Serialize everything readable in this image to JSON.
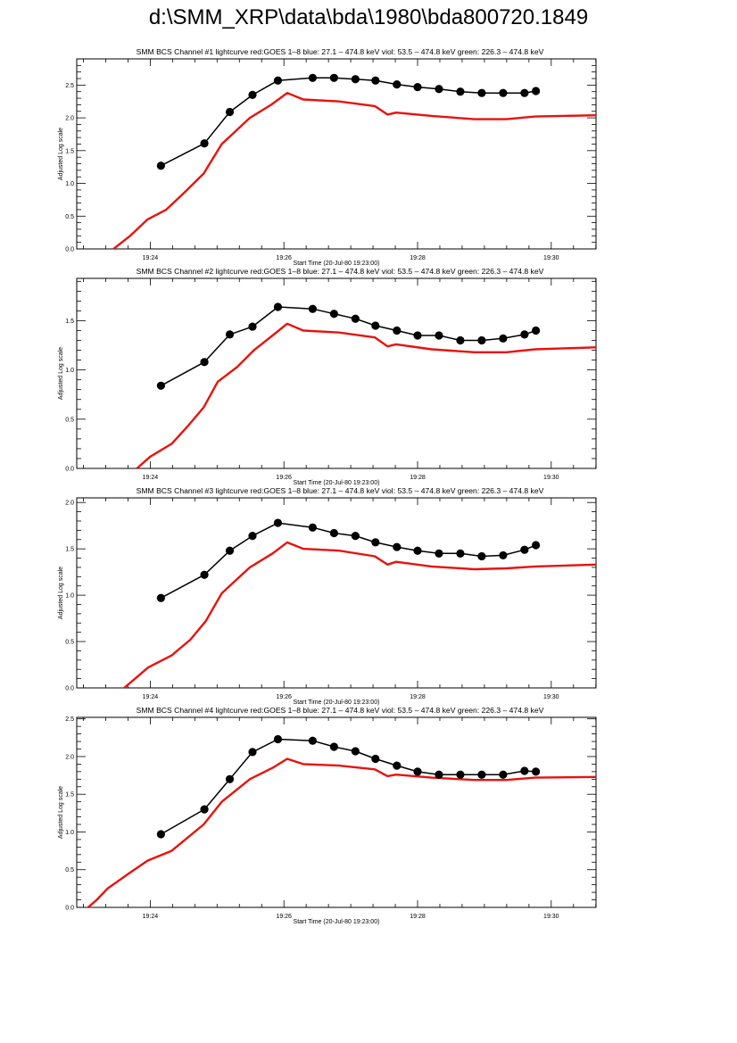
{
  "page_title": "d:\\SMM_XRP\\data\\bda\\1980\\bda800720.1849",
  "colors": {
    "goes": "#e8120c",
    "bcs": "#000000"
  },
  "chart_data": [
    {
      "type": "line",
      "title": "SMM BCS Channel #1 lightcurve  red:GOES 1–8  blue: 27.1 – 474.8 keV  viol: 53.5 – 474.8 keV  green: 226.3 – 474.8 keV",
      "xlabel": "Start Time (20-Jul-80 19:23:00)",
      "ylabel": "Adjusted Log scale",
      "xlim_minutes_after_1900": [
        22.9,
        30.67
      ],
      "xticks": [
        {
          "v": 24,
          "label": "19:24"
        },
        {
          "v": 26,
          "label": "19:26"
        },
        {
          "v": 28,
          "label": "19:28"
        },
        {
          "v": 30,
          "label": "19:30"
        }
      ],
      "ylim": [
        0,
        2.9
      ],
      "yticks": [
        {
          "v": 0,
          "label": "0.0"
        },
        {
          "v": 0.5,
          "label": "0.5"
        },
        {
          "v": 1,
          "label": "1.0"
        },
        {
          "v": 1.5,
          "label": "1.5"
        },
        {
          "v": 2,
          "label": "2.0"
        },
        {
          "v": 2.5,
          "label": "2.5"
        }
      ],
      "series": [
        {
          "name": "GOES 1-8",
          "color": "red",
          "x": [
            23.45,
            23.7,
            23.96,
            24.24,
            24.5,
            24.8,
            25.07,
            25.49,
            25.81,
            26.05,
            26.29,
            26.83,
            27.36,
            27.55,
            27.68,
            28.21,
            28.85,
            29.33,
            29.76,
            30.67
          ],
          "y": [
            0.0,
            0.2,
            0.45,
            0.6,
            0.85,
            1.15,
            1.6,
            2.0,
            2.2,
            2.38,
            2.28,
            2.25,
            2.18,
            2.05,
            2.08,
            2.03,
            1.98,
            1.98,
            2.02,
            2.04
          ]
        },
        {
          "name": "BCS",
          "color": "black",
          "markers": true,
          "x": [
            24.16,
            24.81,
            25.19,
            25.53,
            25.91,
            26.43,
            26.75,
            27.07,
            27.37,
            27.69,
            28.0,
            28.32,
            28.64,
            28.96,
            29.28,
            29.6,
            29.77
          ],
          "y": [
            1.27,
            1.61,
            2.09,
            2.35,
            2.57,
            2.61,
            2.61,
            2.59,
            2.57,
            2.51,
            2.47,
            2.44,
            2.4,
            2.38,
            2.38,
            2.38,
            2.41
          ]
        }
      ]
    },
    {
      "type": "line",
      "title": "SMM BCS Channel #2 lightcurve  red:GOES 1–8  blue: 27.1 – 474.8 keV  viol: 53.5 – 474.8 keV  green: 226.3 – 474.8 keV",
      "xlabel": "Start Time (20-Jul-80 19:23:00)",
      "ylabel": "Adjusted Log scale",
      "xlim_minutes_after_1900": [
        22.9,
        30.67
      ],
      "xticks": [
        {
          "v": 24,
          "label": "19:24"
        },
        {
          "v": 26,
          "label": "19:26"
        },
        {
          "v": 28,
          "label": "19:28"
        },
        {
          "v": 30,
          "label": "19:30"
        }
      ],
      "ylim": [
        0,
        1.93
      ],
      "yticks": [
        {
          "v": 0,
          "label": "0.0"
        },
        {
          "v": 0.5,
          "label": "0.5"
        },
        {
          "v": 1,
          "label": "1.0"
        },
        {
          "v": 1.5,
          "label": "1.5"
        }
      ],
      "series": [
        {
          "name": "GOES 1-8",
          "color": "red",
          "x": [
            23.8,
            24.0,
            24.32,
            24.55,
            24.8,
            25.01,
            25.3,
            25.55,
            25.83,
            26.05,
            26.29,
            26.83,
            27.36,
            27.55,
            27.68,
            28.21,
            28.85,
            29.33,
            29.76,
            30.67
          ],
          "y": [
            0.0,
            0.12,
            0.25,
            0.42,
            0.62,
            0.88,
            1.03,
            1.2,
            1.35,
            1.47,
            1.4,
            1.38,
            1.33,
            1.24,
            1.26,
            1.21,
            1.18,
            1.18,
            1.21,
            1.23
          ]
        },
        {
          "name": "BCS",
          "color": "black",
          "markers": true,
          "x": [
            24.16,
            24.81,
            25.19,
            25.53,
            25.91,
            26.43,
            26.75,
            27.07,
            27.37,
            27.69,
            28.0,
            28.32,
            28.64,
            28.96,
            29.28,
            29.6,
            29.77
          ],
          "y": [
            0.84,
            1.08,
            1.36,
            1.44,
            1.64,
            1.62,
            1.57,
            1.52,
            1.45,
            1.4,
            1.35,
            1.35,
            1.3,
            1.3,
            1.32,
            1.36,
            1.4
          ]
        }
      ]
    },
    {
      "type": "line",
      "title": "SMM BCS Channel #3 lightcurve  red:GOES 1–8  blue: 27.1 – 474.8 keV  viol: 53.5 – 474.8 keV  green: 226.3 – 474.8 keV",
      "xlabel": "Start Time (20-Jul-80 19:23:00)",
      "ylabel": "Adjusted Log scale",
      "xlim_minutes_after_1900": [
        22.9,
        30.67
      ],
      "xticks": [
        {
          "v": 24,
          "label": "19:24"
        },
        {
          "v": 26,
          "label": "19:26"
        },
        {
          "v": 28,
          "label": "19:28"
        },
        {
          "v": 30,
          "label": "19:30"
        }
      ],
      "ylim": [
        0,
        2.05
      ],
      "yticks": [
        {
          "v": 0,
          "label": "0.0"
        },
        {
          "v": 0.5,
          "label": "0.5"
        },
        {
          "v": 1,
          "label": "1.0"
        },
        {
          "v": 1.5,
          "label": "1.5"
        },
        {
          "v": 2,
          "label": "2.0"
        }
      ],
      "series": [
        {
          "name": "GOES 1-8",
          "color": "red",
          "x": [
            23.61,
            23.97,
            24.32,
            24.6,
            24.83,
            25.07,
            25.49,
            25.83,
            26.05,
            26.29,
            26.83,
            27.36,
            27.55,
            27.68,
            28.21,
            28.85,
            29.33,
            29.76,
            30.67
          ],
          "y": [
            0.0,
            0.22,
            0.35,
            0.52,
            0.72,
            1.02,
            1.3,
            1.45,
            1.57,
            1.5,
            1.48,
            1.42,
            1.33,
            1.36,
            1.31,
            1.28,
            1.29,
            1.31,
            1.33
          ]
        },
        {
          "name": "BCS",
          "color": "black",
          "markers": true,
          "x": [
            24.16,
            24.81,
            25.19,
            25.53,
            25.91,
            26.43,
            26.75,
            27.07,
            27.37,
            27.69,
            28.0,
            28.32,
            28.64,
            28.96,
            29.28,
            29.6,
            29.77
          ],
          "y": [
            0.97,
            1.22,
            1.48,
            1.64,
            1.78,
            1.73,
            1.67,
            1.64,
            1.57,
            1.52,
            1.48,
            1.45,
            1.45,
            1.42,
            1.43,
            1.49,
            1.54
          ]
        }
      ]
    },
    {
      "type": "line",
      "title": "SMM BCS Channel #4 lightcurve  red:GOES 1–8  blue: 27.1 – 474.8 keV  viol: 53.5 – 474.8 keV  green: 226.3 – 474.8 keV",
      "xlabel": "Start Time (20-Jul-80 19:23:00)",
      "ylabel": "Adjusted Log scale",
      "xlim_minutes_after_1900": [
        22.9,
        30.67
      ],
      "xticks": [
        {
          "v": 24,
          "label": "19:24"
        },
        {
          "v": 26,
          "label": "19:26"
        },
        {
          "v": 28,
          "label": "19:28"
        },
        {
          "v": 30,
          "label": "19:30"
        }
      ],
      "ylim": [
        0,
        2.52
      ],
      "yticks": [
        {
          "v": 0,
          "label": "0.0"
        },
        {
          "v": 0.5,
          "label": "0.5"
        },
        {
          "v": 1,
          "label": "1.0"
        },
        {
          "v": 1.5,
          "label": "1.5"
        },
        {
          "v": 2,
          "label": "2.0"
        },
        {
          "v": 2.5,
          "label": "2.5"
        }
      ],
      "series": [
        {
          "name": "GOES 1-8",
          "color": "red",
          "x": [
            23.07,
            23.2,
            23.36,
            23.68,
            23.96,
            24.32,
            24.8,
            25.07,
            25.49,
            25.83,
            26.05,
            26.29,
            26.83,
            27.36,
            27.55,
            27.68,
            28.21,
            28.85,
            29.33,
            29.76,
            30.67
          ],
          "y": [
            0.0,
            0.1,
            0.25,
            0.45,
            0.62,
            0.75,
            1.1,
            1.4,
            1.7,
            1.85,
            1.97,
            1.9,
            1.88,
            1.83,
            1.74,
            1.76,
            1.72,
            1.69,
            1.69,
            1.72,
            1.73
          ]
        },
        {
          "name": "BCS",
          "color": "black",
          "markers": true,
          "x": [
            24.16,
            24.81,
            25.19,
            25.53,
            25.91,
            26.43,
            26.75,
            27.07,
            27.37,
            27.69,
            28.0,
            28.32,
            28.64,
            28.96,
            29.28,
            29.6,
            29.77
          ],
          "y": [
            0.97,
            1.3,
            1.7,
            2.06,
            2.23,
            2.21,
            2.13,
            2.07,
            1.97,
            1.88,
            1.8,
            1.76,
            1.76,
            1.76,
            1.76,
            1.81,
            1.8
          ]
        }
      ]
    }
  ]
}
